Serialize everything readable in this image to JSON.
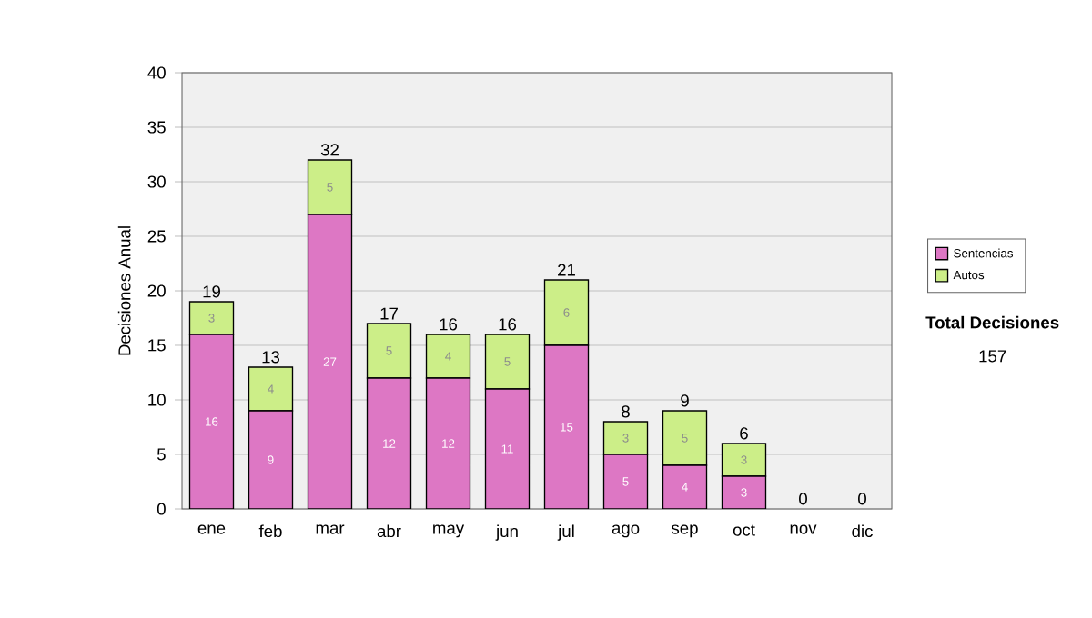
{
  "chart_data": {
    "type": "bar",
    "stacked": true,
    "ylabel": "Decisiones Anual",
    "categories": [
      "ene",
      "feb",
      "mar",
      "abr",
      "may",
      "jun",
      "jul",
      "ago",
      "sep",
      "oct",
      "nov",
      "dic"
    ],
    "series": [
      {
        "name": "Sentencias",
        "color": "#dd77c4",
        "values": [
          16,
          9,
          27,
          12,
          12,
          11,
          15,
          5,
          4,
          3,
          0,
          0
        ],
        "value_labels": [
          "16",
          "9",
          "27",
          "12",
          "12",
          "11",
          "15",
          "5",
          "4",
          "3",
          null,
          null
        ]
      },
      {
        "name": "Autos",
        "color": "#ccee88",
        "values": [
          3,
          4,
          5,
          5,
          4,
          5,
          6,
          3,
          5,
          3,
          0,
          0
        ],
        "value_labels": [
          "3",
          "4",
          "5",
          "5",
          "4",
          "5",
          "6",
          "3",
          "5",
          "3",
          null,
          null
        ]
      }
    ],
    "totals": [
      "19",
      "13",
      "32",
      "17",
      "16",
      "16",
      "21",
      "8",
      "9",
      "6",
      "0",
      "0"
    ],
    "ylim": [
      0,
      40
    ],
    "yticks": [
      0,
      5,
      10,
      15,
      20,
      25,
      30,
      35,
      40
    ],
    "grid": "y",
    "legend": "right",
    "annotations": [
      "**Total Decisiones**",
      "157"
    ]
  }
}
